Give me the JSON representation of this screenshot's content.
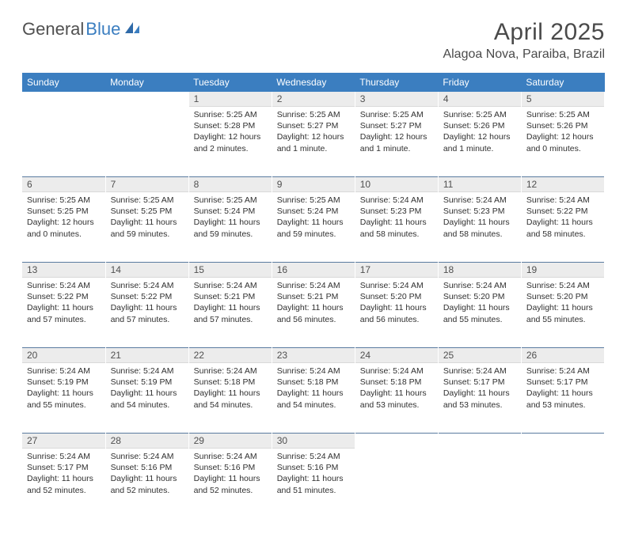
{
  "logo": {
    "textGray": "General",
    "textBlue": "Blue"
  },
  "title": "April 2025",
  "location": "Alagoa Nova, Paraiba, Brazil",
  "colors": {
    "headerBg": "#3b7ec0",
    "headerText": "#ffffff",
    "dayNumBg": "#ececec",
    "rowBorder": "#5a7ba0",
    "bodyText": "#303030"
  },
  "weekdays": [
    "Sunday",
    "Monday",
    "Tuesday",
    "Wednesday",
    "Thursday",
    "Friday",
    "Saturday"
  ],
  "weeks": [
    [
      null,
      null,
      {
        "n": "1",
        "sr": "5:25 AM",
        "ss": "5:28 PM",
        "dl": "12 hours and 2 minutes."
      },
      {
        "n": "2",
        "sr": "5:25 AM",
        "ss": "5:27 PM",
        "dl": "12 hours and 1 minute."
      },
      {
        "n": "3",
        "sr": "5:25 AM",
        "ss": "5:27 PM",
        "dl": "12 hours and 1 minute."
      },
      {
        "n": "4",
        "sr": "5:25 AM",
        "ss": "5:26 PM",
        "dl": "12 hours and 1 minute."
      },
      {
        "n": "5",
        "sr": "5:25 AM",
        "ss": "5:26 PM",
        "dl": "12 hours and 0 minutes."
      }
    ],
    [
      {
        "n": "6",
        "sr": "5:25 AM",
        "ss": "5:25 PM",
        "dl": "12 hours and 0 minutes."
      },
      {
        "n": "7",
        "sr": "5:25 AM",
        "ss": "5:25 PM",
        "dl": "11 hours and 59 minutes."
      },
      {
        "n": "8",
        "sr": "5:25 AM",
        "ss": "5:24 PM",
        "dl": "11 hours and 59 minutes."
      },
      {
        "n": "9",
        "sr": "5:25 AM",
        "ss": "5:24 PM",
        "dl": "11 hours and 59 minutes."
      },
      {
        "n": "10",
        "sr": "5:24 AM",
        "ss": "5:23 PM",
        "dl": "11 hours and 58 minutes."
      },
      {
        "n": "11",
        "sr": "5:24 AM",
        "ss": "5:23 PM",
        "dl": "11 hours and 58 minutes."
      },
      {
        "n": "12",
        "sr": "5:24 AM",
        "ss": "5:22 PM",
        "dl": "11 hours and 58 minutes."
      }
    ],
    [
      {
        "n": "13",
        "sr": "5:24 AM",
        "ss": "5:22 PM",
        "dl": "11 hours and 57 minutes."
      },
      {
        "n": "14",
        "sr": "5:24 AM",
        "ss": "5:22 PM",
        "dl": "11 hours and 57 minutes."
      },
      {
        "n": "15",
        "sr": "5:24 AM",
        "ss": "5:21 PM",
        "dl": "11 hours and 57 minutes."
      },
      {
        "n": "16",
        "sr": "5:24 AM",
        "ss": "5:21 PM",
        "dl": "11 hours and 56 minutes."
      },
      {
        "n": "17",
        "sr": "5:24 AM",
        "ss": "5:20 PM",
        "dl": "11 hours and 56 minutes."
      },
      {
        "n": "18",
        "sr": "5:24 AM",
        "ss": "5:20 PM",
        "dl": "11 hours and 55 minutes."
      },
      {
        "n": "19",
        "sr": "5:24 AM",
        "ss": "5:20 PM",
        "dl": "11 hours and 55 minutes."
      }
    ],
    [
      {
        "n": "20",
        "sr": "5:24 AM",
        "ss": "5:19 PM",
        "dl": "11 hours and 55 minutes."
      },
      {
        "n": "21",
        "sr": "5:24 AM",
        "ss": "5:19 PM",
        "dl": "11 hours and 54 minutes."
      },
      {
        "n": "22",
        "sr": "5:24 AM",
        "ss": "5:18 PM",
        "dl": "11 hours and 54 minutes."
      },
      {
        "n": "23",
        "sr": "5:24 AM",
        "ss": "5:18 PM",
        "dl": "11 hours and 54 minutes."
      },
      {
        "n": "24",
        "sr": "5:24 AM",
        "ss": "5:18 PM",
        "dl": "11 hours and 53 minutes."
      },
      {
        "n": "25",
        "sr": "5:24 AM",
        "ss": "5:17 PM",
        "dl": "11 hours and 53 minutes."
      },
      {
        "n": "26",
        "sr": "5:24 AM",
        "ss": "5:17 PM",
        "dl": "11 hours and 53 minutes."
      }
    ],
    [
      {
        "n": "27",
        "sr": "5:24 AM",
        "ss": "5:17 PM",
        "dl": "11 hours and 52 minutes."
      },
      {
        "n": "28",
        "sr": "5:24 AM",
        "ss": "5:16 PM",
        "dl": "11 hours and 52 minutes."
      },
      {
        "n": "29",
        "sr": "5:24 AM",
        "ss": "5:16 PM",
        "dl": "11 hours and 52 minutes."
      },
      {
        "n": "30",
        "sr": "5:24 AM",
        "ss": "5:16 PM",
        "dl": "11 hours and 51 minutes."
      },
      null,
      null,
      null
    ]
  ],
  "labels": {
    "sunrise": "Sunrise:",
    "sunset": "Sunset:",
    "daylight": "Daylight:"
  }
}
